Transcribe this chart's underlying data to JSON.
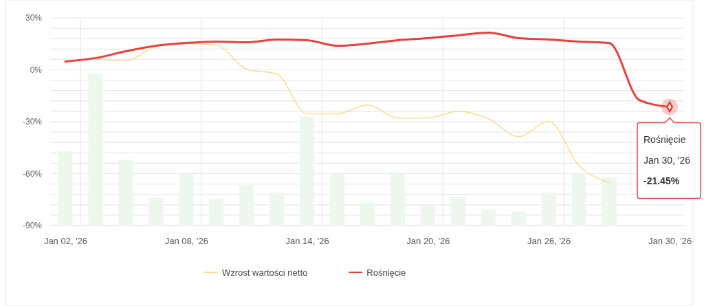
{
  "chart_data": {
    "type": "line",
    "categories": [
      "Jan 02, '26",
      null,
      null,
      null,
      "Jan 08, '26",
      null,
      null,
      null,
      "Jan 14, '26",
      null,
      null,
      null,
      "Jan 20, '26",
      null,
      null,
      null,
      "Jan 26, '26",
      null,
      null,
      null,
      "Jan 30, '26"
    ],
    "series": [
      {
        "type": "bar",
        "color": "#eef7ee",
        "base": [
          -90,
          -90,
          -90,
          -90,
          -90,
          -90,
          -90,
          -90,
          -90,
          -90,
          -90,
          -90,
          -90,
          -90,
          -90,
          -90,
          -90,
          -90,
          -90,
          null,
          null
        ],
        "values": [
          43,
          87.6,
          37.9,
          16,
          29.6,
          15.6,
          23.2,
          19.2,
          63,
          29.6,
          13.3,
          30.8,
          11.7,
          16.4,
          9.3,
          8.1,
          19.2,
          30,
          27.6,
          null,
          null
        ]
      },
      {
        "name": "Wzrost wartości netto",
        "color": "#fbdc8e",
        "values": [
          null,
          6.4,
          5.2,
          13.5,
          15.1,
          14.3,
          0.4,
          -2.4,
          -25.4,
          -25.4,
          -20.3,
          -27.8,
          -27.8,
          -23.9,
          -28.2,
          -38.6,
          -29.8,
          -55.3,
          -65.2,
          null,
          null
        ]
      },
      {
        "name": "Rośnięcie",
        "color": "#e8413a",
        "values": [
          4.8,
          6.8,
          10.7,
          13.9,
          15.5,
          16.3,
          15.9,
          17.5,
          17.1,
          13.9,
          15.1,
          17.1,
          18.3,
          19.9,
          21.5,
          18.3,
          17.5,
          16.3,
          15.5,
          -17.5,
          -21.45
        ]
      }
    ],
    "ylim": [
      -90,
      30
    ],
    "yticks": [
      {
        "value": -90,
        "label": "-90%"
      },
      {
        "value": -84,
        "label": null
      },
      {
        "value": -78,
        "label": null
      },
      {
        "value": -72,
        "label": null
      },
      {
        "value": -66,
        "label": null
      },
      {
        "value": -60,
        "label": "-60%"
      },
      {
        "value": -54,
        "label": null
      },
      {
        "value": -48,
        "label": null
      },
      {
        "value": -42,
        "label": null
      },
      {
        "value": -36,
        "label": null
      },
      {
        "value": -30,
        "label": "-30%"
      },
      {
        "value": -24,
        "label": null
      },
      {
        "value": -18,
        "label": null
      },
      {
        "value": -12,
        "label": null
      },
      {
        "value": -6,
        "label": null
      },
      {
        "value": 0,
        "label": "0%"
      },
      {
        "value": 6,
        "label": null
      },
      {
        "value": 12,
        "label": null
      },
      {
        "value": 18,
        "label": null
      },
      {
        "value": 24,
        "label": null
      },
      {
        "value": 30,
        "label": "30%"
      }
    ],
    "grid": true,
    "legend": "bottom",
    "marker": "none",
    "annotations": [
      {
        "text": "Rośnięcie\nJan 30, '26\n-21.45%",
        "x": "Jan 30, '26",
        "y": -21.45
      }
    ]
  }
}
